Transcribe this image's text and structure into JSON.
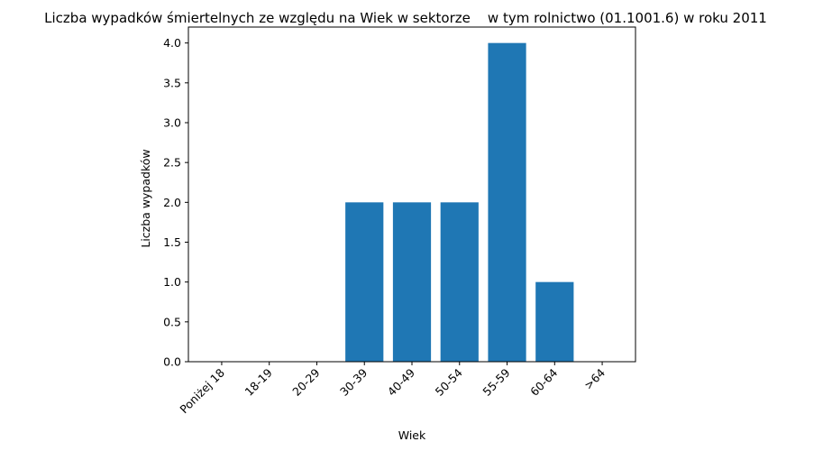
{
  "chart_data": {
    "type": "bar",
    "title": "Liczba wypadków śmiertelnych ze względu na Wiek w sektorze    w tym rolnictwo (01.1001.6) w roku 2011",
    "xlabel": "Wiek",
    "ylabel": "Liczba wypadków",
    "categories": [
      "Poniżej 18",
      "18-19",
      "20-29",
      "30-39",
      "40-49",
      "50-54",
      "55-59",
      "60-64",
      ">64"
    ],
    "values": [
      0,
      0,
      0,
      2,
      2,
      2,
      4,
      1,
      0
    ],
    "ylim": [
      0,
      4.2
    ],
    "yticks": [
      "0.0",
      "0.5",
      "1.0",
      "1.5",
      "2.0",
      "2.5",
      "3.0",
      "3.5",
      "4.0"
    ],
    "bar_color": "#1f77b4",
    "grid": false,
    "legend": false
  }
}
